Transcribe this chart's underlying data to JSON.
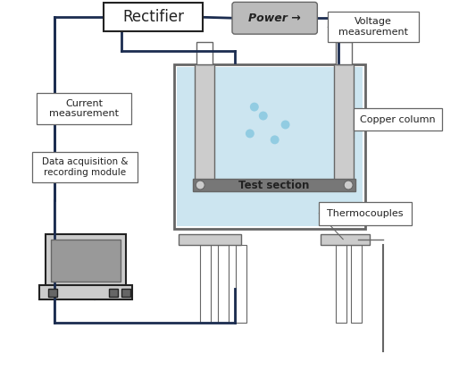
{
  "bg_color": "#ffffff",
  "labels": {
    "rectifier": "Rectifier",
    "power": "Power →",
    "voltage": "Voltage\nmeasurement",
    "current": "Current\nmeasurement",
    "data_acq": "Data acquisition &\nrecording module",
    "test_section": "Test section",
    "copper_column": "Copper column",
    "thermocouples": "Thermocouples"
  },
  "colors": {
    "dark_navy": "#1c2d50",
    "light_gray": "#cccccc",
    "medium_gray": "#aaaaaa",
    "light_blue_water": "#cce5f0",
    "white": "#ffffff",
    "dark_gray": "#666666",
    "power_box_bg": "#bbbbbb",
    "bubble_color": "#88c8e0",
    "black": "#222222"
  },
  "layout": {
    "figw": 5.14,
    "figh": 4.24,
    "dpi": 100
  }
}
